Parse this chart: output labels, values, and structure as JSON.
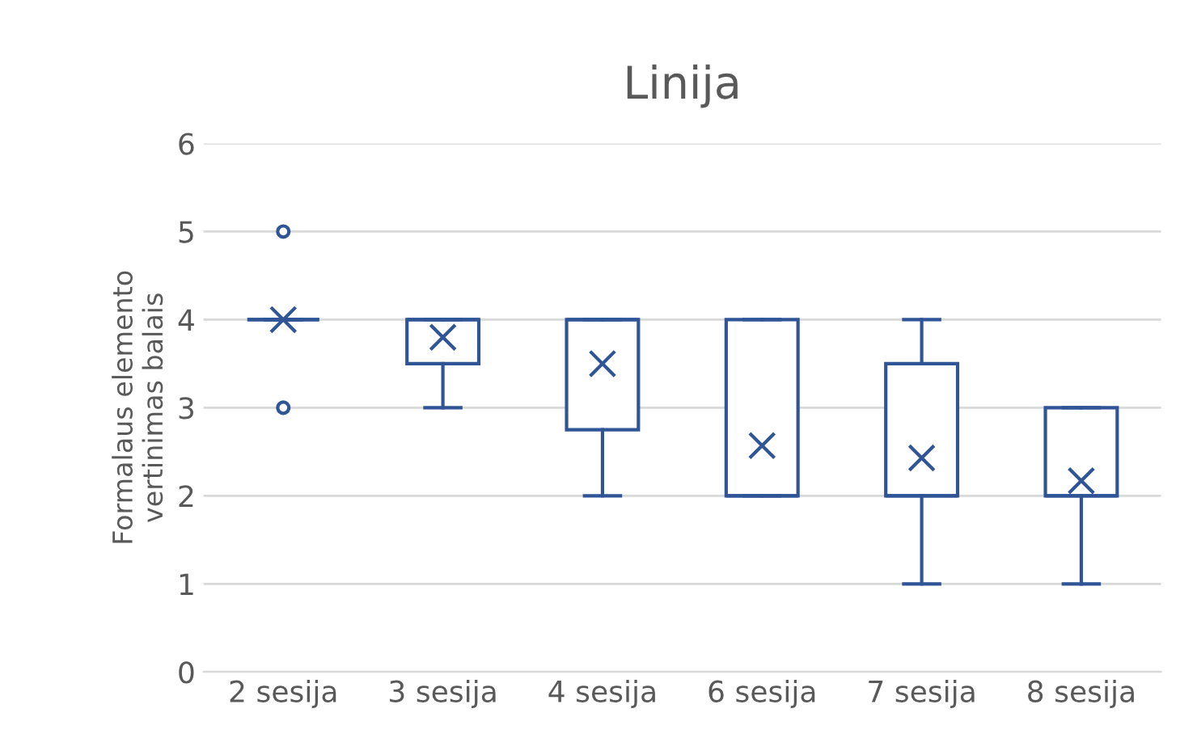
{
  "chart_data": {
    "type": "box",
    "title": "Linija",
    "ylabel": "Formalaus elemento\nvertinimas balais",
    "categories": [
      "2 sesija",
      "3 sesija",
      "4 sesija",
      "6 sesija",
      "7 sesija",
      "8 sesija"
    ],
    "color": "#2f5597",
    "boxes": [
      {
        "low": 4,
        "q1": 4,
        "median": 4,
        "q3": 4,
        "high": 4,
        "mean": 4,
        "outliers": [
          5,
          3
        ]
      },
      {
        "low": 3,
        "q1": 3.5,
        "median": 4,
        "q3": 4,
        "high": 4,
        "mean": 3.8
      },
      {
        "low": 2,
        "q1": 2.75,
        "median": 4,
        "q3": 4,
        "high": 4,
        "mean": 3.5
      },
      {
        "low": 2,
        "q1": 2,
        "median": 2,
        "q3": 4,
        "high": 4,
        "mean": 2.57
      },
      {
        "low": 1,
        "q1": 2,
        "median": 2,
        "q3": 3.5,
        "high": 4,
        "mean": 2.43
      },
      {
        "low": 1,
        "q1": 2,
        "median": 2,
        "q3": 3,
        "high": 3,
        "mean": 2.17
      }
    ],
    "ylim": [
      0,
      6
    ],
    "yticks": [
      0,
      1,
      2,
      3,
      4,
      5,
      6
    ],
    "grid": "y",
    "legend": false
  }
}
